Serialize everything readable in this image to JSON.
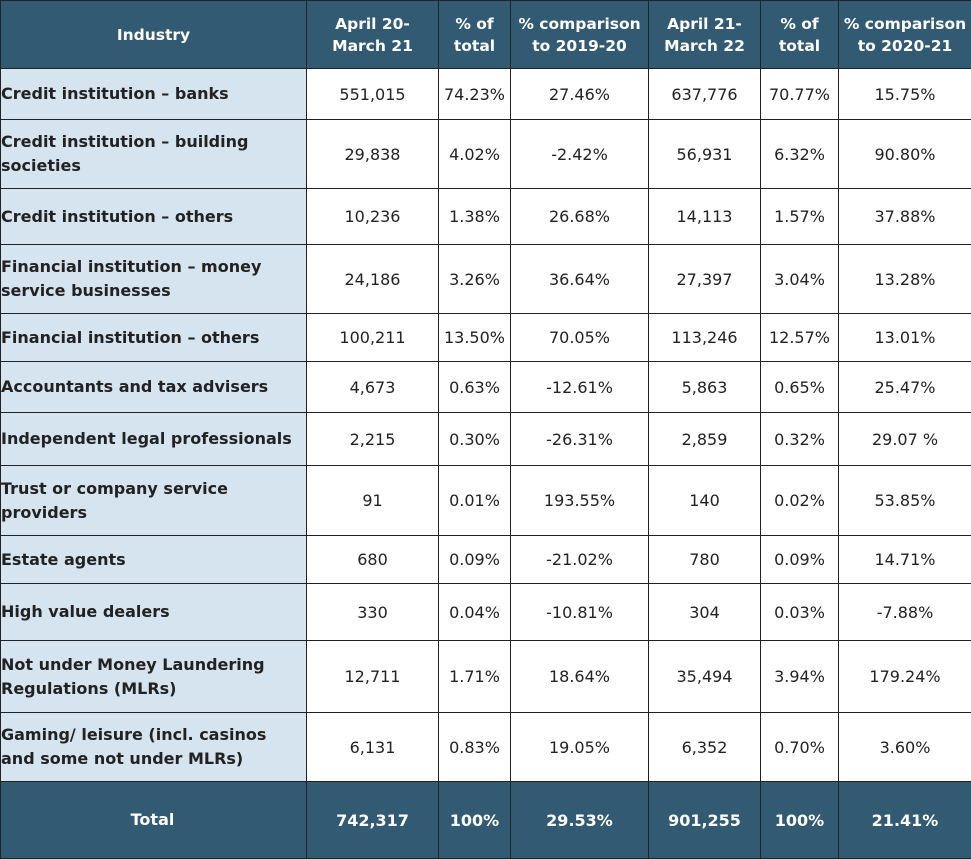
{
  "headers": [
    "Industry",
    "April 20-March 21",
    "% of total",
    "% comparison to 2019-20",
    "April 21-March 22",
    "% of total",
    "% comparison to 2020-21"
  ],
  "rows": [
    [
      "Credit institution – banks",
      "551,015",
      "74.23%",
      "27.46%",
      "637,776",
      "70.77%",
      "15.75%"
    ],
    [
      "Credit institution – building societies",
      "29,838",
      "4.02%",
      "-2.42%",
      "56,931",
      "6.32%",
      "90.80%"
    ],
    [
      "Credit institution – others",
      "10,236",
      "1.38%",
      "26.68%",
      "14,113",
      "1.57%",
      "37.88%"
    ],
    [
      "Financial institution – money service businesses",
      "24,186",
      "3.26%",
      "36.64%",
      "27,397",
      "3.04%",
      "13.28%"
    ],
    [
      "Financial institution – others",
      "100,211",
      "13.50%",
      "70.05%",
      "113,246",
      "12.57%",
      "13.01%"
    ],
    [
      "Accountants and tax advisers",
      "4,673",
      "0.63%",
      "-12.61%",
      "5,863",
      "0.65%",
      "25.47%"
    ],
    [
      "Independent legal professionals",
      "2,215",
      "0.30%",
      "-26.31%",
      "2,859",
      "0.32%",
      "29.07 %"
    ],
    [
      "Trust or company service providers",
      "91",
      "0.01%",
      "193.55%",
      "140",
      "0.02%",
      "53.85%"
    ],
    [
      "Estate agents",
      "680",
      "0.09%",
      "-21.02%",
      "780",
      "0.09%",
      "14.71%"
    ],
    [
      "High value dealers",
      "330",
      "0.04%",
      "-10.81%",
      "304",
      "0.03%",
      "-7.88%"
    ],
    [
      "Not under Money Laundering Regulations (MLRs)",
      "12,711",
      "1.71%",
      "18.64%",
      "35,494",
      "3.94%",
      "179.24%"
    ],
    [
      "Gaming/ leisure (incl. casinos and some not under MLRs)",
      "6,131",
      "0.83%",
      "19.05%",
      "6,352",
      "0.70%",
      "3.60%"
    ]
  ],
  "total": [
    "Total",
    "742,317",
    "100%",
    "29.53%",
    "901,255",
    "100%",
    "21.41%"
  ]
}
